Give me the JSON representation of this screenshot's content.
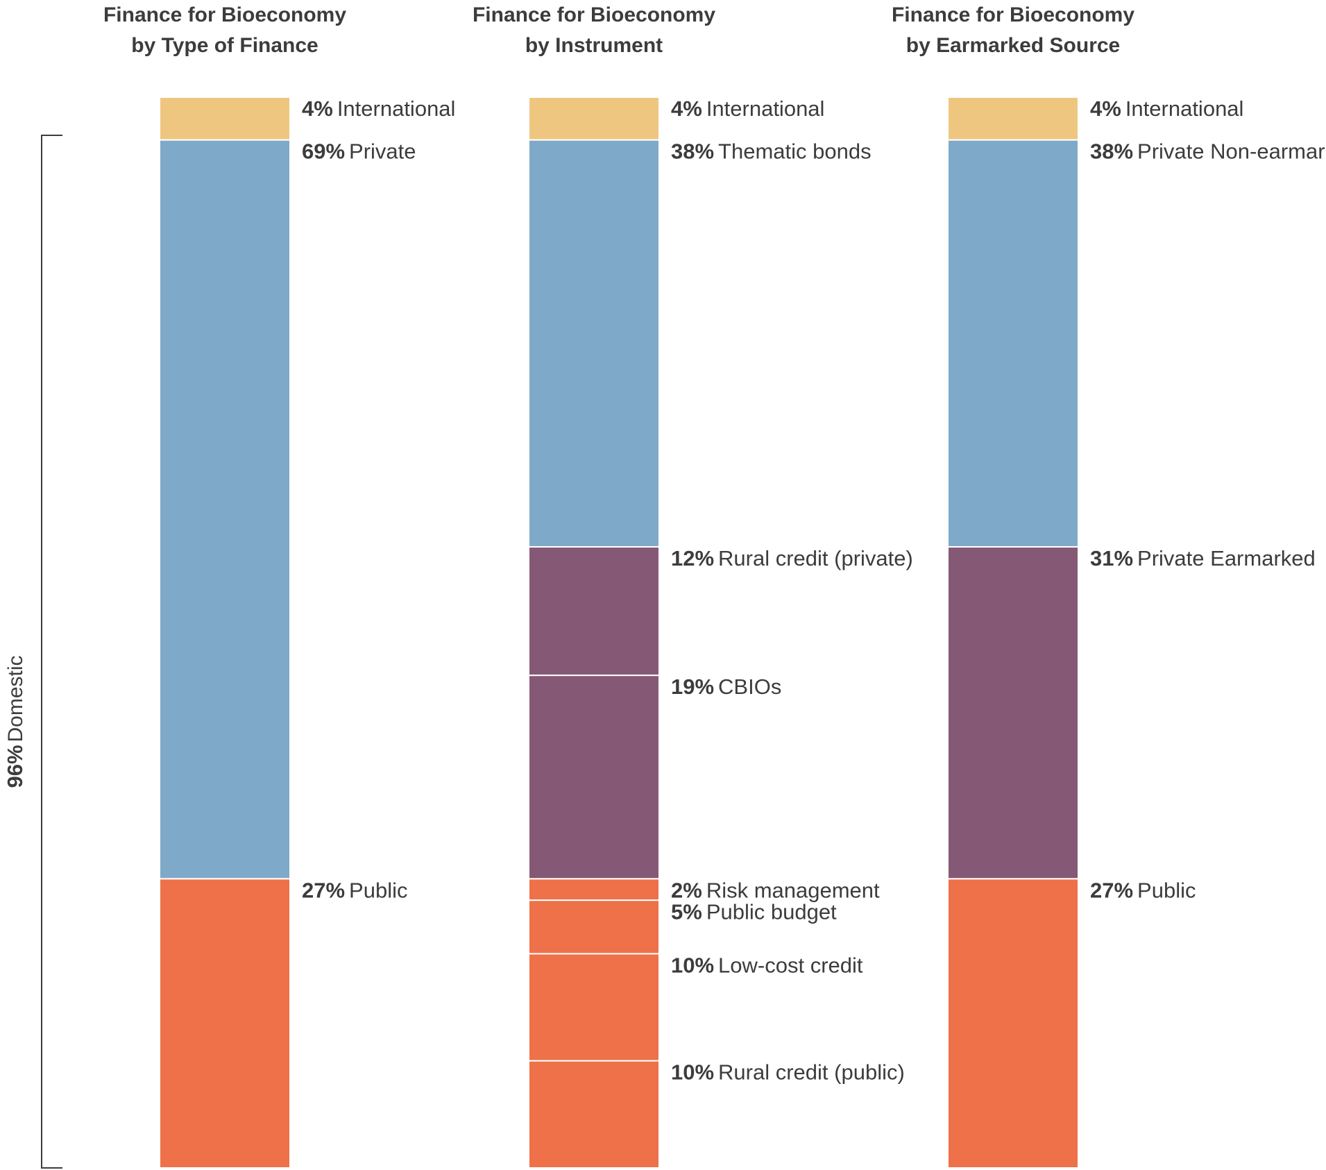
{
  "chart_data": [
    {
      "type": "bar",
      "stacked": true,
      "title": [
        "Finance for Bioeconomy",
        "by Type of Finance"
      ],
      "segments": [
        {
          "label": "International",
          "value": 4,
          "display": "4%",
          "color": "#efc680"
        },
        {
          "label": "Private",
          "value": 69,
          "display": "69%",
          "color": "#7fa9c8"
        },
        {
          "label": "Public",
          "value": 27,
          "display": "27%",
          "color": "#ee7149"
        }
      ]
    },
    {
      "type": "bar",
      "stacked": true,
      "title": [
        "Finance for Bioeconomy",
        "by Instrument"
      ],
      "segments": [
        {
          "label": "International",
          "value": 4,
          "display": "4%",
          "color": "#efc680"
        },
        {
          "label": "Thematic bonds",
          "value": 38,
          "display": "38%",
          "color": "#7fa9c8"
        },
        {
          "label": "Rural credit (private)",
          "value": 12,
          "display": "12%",
          "color": "#855876"
        },
        {
          "label": "CBIOs",
          "value": 19,
          "display": "19%",
          "color": "#855876"
        },
        {
          "label": "Risk management",
          "value": 2,
          "display": "2%",
          "color": "#ee7149"
        },
        {
          "label": "Public budget",
          "value": 5,
          "display": "5%",
          "color": "#ee7149"
        },
        {
          "label": "Low-cost credit",
          "value": 10,
          "display": "10%",
          "color": "#ee7149"
        },
        {
          "label": "Rural credit (public)",
          "value": 10,
          "display": "10%",
          "color": "#ee7149"
        }
      ]
    },
    {
      "type": "bar",
      "stacked": true,
      "title": [
        "Finance for Bioeconomy",
        "by Earmarked Source"
      ],
      "segments": [
        {
          "label": "International",
          "value": 4,
          "display": "4%",
          "color": "#efc680"
        },
        {
          "label": "Private Non-earmarked",
          "value": 38,
          "display": "38%",
          "color": "#7fa9c8"
        },
        {
          "label": "Private Earmarked",
          "value": 31,
          "display": "31%",
          "color": "#855876"
        },
        {
          "label": "Public",
          "value": 27,
          "display": "27%",
          "color": "#ee7149"
        }
      ]
    }
  ],
  "domestic_bracket": {
    "value": 96,
    "display": "96%",
    "label": "Domestic"
  }
}
